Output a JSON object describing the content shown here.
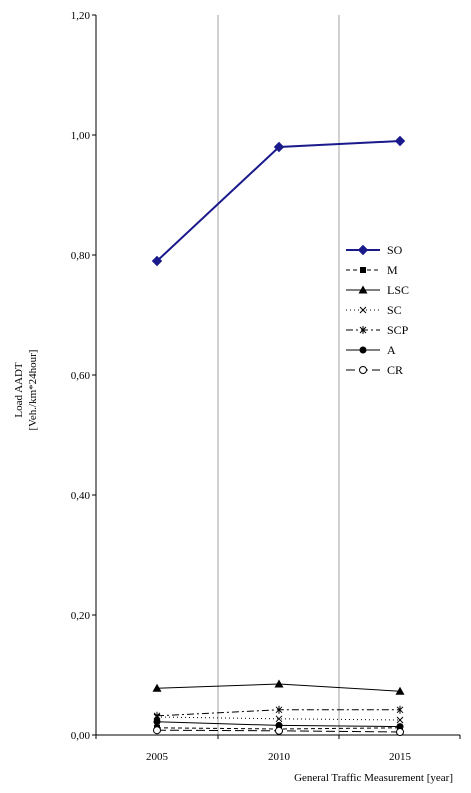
{
  "chart_data": {
    "type": "line",
    "title": "",
    "xlabel": "General Traffic Measurement [year]",
    "ylabel_line1": "Load AADT",
    "ylabel_line2": "[Veh./km*24hour]",
    "x": [
      "2005",
      "2010",
      "2015"
    ],
    "ylim": [
      0,
      1.2
    ],
    "yticks": [
      "0,00",
      "0,20",
      "0,40",
      "0,60",
      "0,80",
      "1,00",
      "1,20"
    ],
    "grid": "vertical",
    "legend_position": "right",
    "series": [
      {
        "name": "SO",
        "values": [
          0.79,
          0.98,
          0.99
        ],
        "color": "#1a1a8c",
        "marker": "diamond-filled",
        "dash": "solid"
      },
      {
        "name": "M",
        "values": [
          0.012,
          0.01,
          0.012
        ],
        "color": "#000000",
        "marker": "square-filled",
        "dash": "dash"
      },
      {
        "name": "LSC",
        "values": [
          0.078,
          0.085,
          0.073
        ],
        "color": "#000000",
        "marker": "triangle-filled",
        "dash": "solid"
      },
      {
        "name": "SC",
        "values": [
          0.03,
          0.027,
          0.025
        ],
        "color": "#000000",
        "marker": "x",
        "dash": "dot"
      },
      {
        "name": "SCP",
        "values": [
          0.032,
          0.042,
          0.042
        ],
        "color": "#000000",
        "marker": "star",
        "dash": "dashdot"
      },
      {
        "name": "A",
        "values": [
          0.022,
          0.016,
          0.014
        ],
        "color": "#000000",
        "marker": "circle-filled",
        "dash": "solid"
      },
      {
        "name": "CR",
        "values": [
          0.008,
          0.007,
          0.005
        ],
        "color": "#000000",
        "marker": "circle-open",
        "dash": "longdash"
      }
    ]
  }
}
